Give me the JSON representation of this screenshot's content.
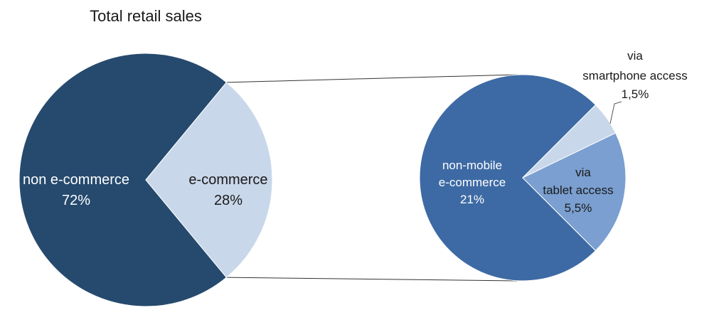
{
  "chart_data": [
    {
      "type": "pie",
      "title": "Total retail sales",
      "slices": [
        {
          "label": "non e-commerce",
          "value_label": "72%",
          "value": 72,
          "color": "#264a6e",
          "label_color": "#ffffff"
        },
        {
          "label": "e-commerce",
          "value_label": "28%",
          "value": 28,
          "color": "#c9d7ea",
          "label_color": "#1a1a1a"
        }
      ]
    },
    {
      "type": "pie",
      "title": "",
      "slices": [
        {
          "label_lines": [
            "non-mobile",
            "e-commerce"
          ],
          "value_label": "21%",
          "value": 21,
          "color": "#3d6aa4",
          "label_color": "#ffffff"
        },
        {
          "label_lines": [
            "via",
            "smartphone access"
          ],
          "value_label": "1,5%",
          "value": 1.5,
          "color": "#c9d7ea",
          "label_color": "#1a1a1a"
        },
        {
          "label_lines": [
            "via",
            "tablet access"
          ],
          "value_label": "5,5%",
          "value": 5.5,
          "color": "#7a9fd0",
          "label_color": "#1a1a1a"
        }
      ]
    }
  ]
}
